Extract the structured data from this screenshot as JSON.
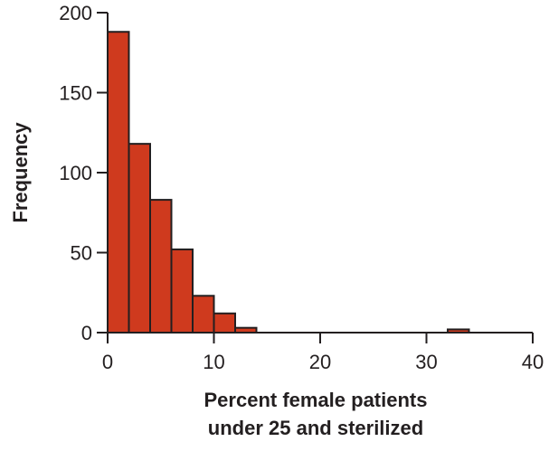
{
  "colors": {
    "bar_fill": "#cf3a1e",
    "bar_stroke": "#231f20",
    "axis": "#231f20",
    "text": "#231f20"
  },
  "chart_data": {
    "type": "bar",
    "subtype": "histogram",
    "title": "",
    "xlabel_lines": [
      "Percent female patients",
      "under 25 and sterilized"
    ],
    "ylabel": "Frequency",
    "xlim": [
      0,
      40
    ],
    "ylim": [
      0,
      200
    ],
    "xticks": [
      0,
      10,
      20,
      30,
      40
    ],
    "yticks": [
      0,
      50,
      100,
      150,
      200
    ],
    "bin_width": 2,
    "grid": false,
    "legend": "none",
    "bins": [
      {
        "x_start": 0,
        "x_end": 2,
        "value": 188
      },
      {
        "x_start": 2,
        "x_end": 4,
        "value": 118
      },
      {
        "x_start": 4,
        "x_end": 6,
        "value": 83
      },
      {
        "x_start": 6,
        "x_end": 8,
        "value": 52
      },
      {
        "x_start": 8,
        "x_end": 10,
        "value": 23
      },
      {
        "x_start": 10,
        "x_end": 12,
        "value": 12
      },
      {
        "x_start": 12,
        "x_end": 14,
        "value": 3
      },
      {
        "x_start": 32,
        "x_end": 34,
        "value": 2
      }
    ]
  }
}
